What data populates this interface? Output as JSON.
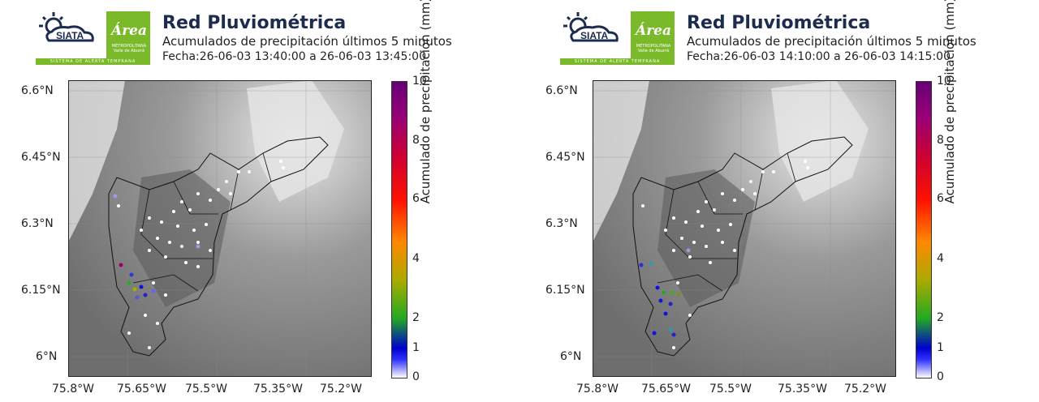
{
  "panels": [
    {
      "logo_siata_text": "SIATA",
      "logo_area_text": "Área",
      "logo_area_small": "METROPOLITANA Valle de Aburrá",
      "logo_strip_text": "SISTEMA DE ALERTA TEMPRANA",
      "title": "Red Pluviométrica",
      "subtitle": "Acumulados de precipitación últimos 5 minutos",
      "dateline": "Fecha:26-06-03 13:40:00 a 26-06-03 13:45:00",
      "colorbar_label": "Acumulado de precipitación (mm)",
      "colorbar_ticks": [
        "10",
        "8",
        "6",
        "4",
        "2",
        "1",
        "0"
      ],
      "y_ticks": [
        "6.6°N",
        "6.45°N",
        "6.3°N",
        "6.15°N",
        "6°N"
      ],
      "x_ticks": [
        "75.8°W",
        "75.65°W",
        "75.5°W",
        "75.35°W",
        "75.2°W"
      ]
    },
    {
      "logo_siata_text": "SIATA",
      "logo_area_text": "Área",
      "logo_area_small": "METROPOLITANA Valle de Aburrá",
      "logo_strip_text": "SISTEMA DE ALERTA TEMPRANA",
      "title": "Red Pluviométrica",
      "subtitle": "Acumulados de precipitación últimos 5 minutos",
      "dateline": "Fecha:26-06-03 14:10:00 a 26-06-03 14:15:00",
      "colorbar_label": "Acumulado de precipitación (mm)",
      "colorbar_ticks": [
        "10",
        "8",
        "6",
        "4",
        "2",
        "1",
        "0"
      ],
      "y_ticks": [
        "6.6°N",
        "6.45°N",
        "6.3°N",
        "6.15°N",
        "6°N"
      ],
      "x_ticks": [
        "75.8°W",
        "75.65°W",
        "75.5°W",
        "75.35°W",
        "75.2°W"
      ]
    }
  ],
  "colors": {
    "title": "#1d2b4f",
    "logo_green": "#7ab929",
    "station_dry": "#ffffff",
    "station_rain": "#1010e0"
  }
}
